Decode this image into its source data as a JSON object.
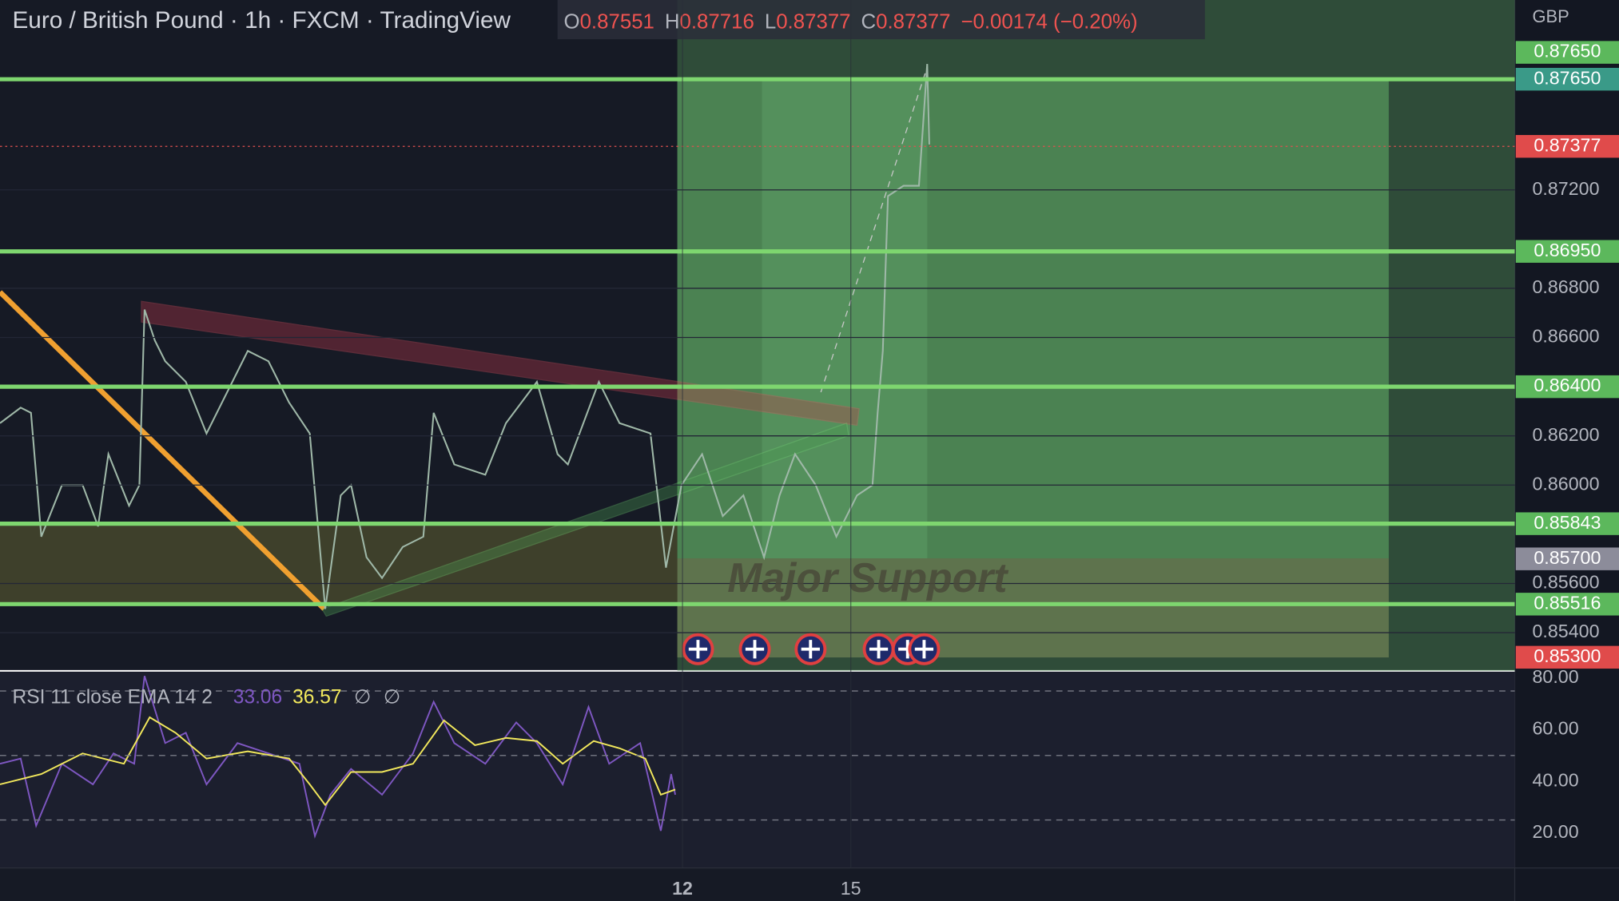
{
  "header": {
    "symbol": "Euro / British Pound · 1h · FXCM · TradingView",
    "ohlc": [
      {
        "label": "O",
        "value": "0.87551"
      },
      {
        "label": "H",
        "value": "0.87716"
      },
      {
        "label": "L",
        "value": "0.87377"
      },
      {
        "label": "C",
        "value": "0.87377"
      }
    ],
    "change": "−0.00174 (−0.20%)"
  },
  "price_axis": {
    "currency": "GBP",
    "ticks": [
      "0.87200",
      "0.86800",
      "0.86600",
      "0.86200",
      "0.86000",
      "0.85600",
      "0.85400"
    ]
  },
  "price_levels": [
    {
      "label": "0.87650",
      "color": "#5cb85c",
      "line": false
    },
    {
      "label": "0.87650",
      "color": "#3a9a88",
      "line": true
    },
    {
      "label": "0.87377",
      "color": "#e04b4b",
      "line": false
    },
    {
      "label": "0.86950",
      "color": "#5cb85c",
      "line": true
    },
    {
      "label": "0.86400",
      "color": "#5cb85c",
      "line": true
    },
    {
      "label": "0.85843",
      "color": "#5cb85c",
      "line": true
    },
    {
      "label": "0.85700",
      "color": "#8c8c9a",
      "line": false
    },
    {
      "label": "0.85516",
      "color": "#5cb85c",
      "line": true
    },
    {
      "label": "0.85300",
      "color": "#e04b4b",
      "line": false
    }
  ],
  "annotation": "Major Support",
  "rsi": {
    "title": "RSI 11 close EMA 14 2",
    "value": "33.06",
    "ema": "36.57",
    "flags": [
      "∅",
      "∅"
    ],
    "ticks": [
      "80.00",
      "60.00",
      "40.00",
      "20.00"
    ]
  },
  "time_axis": [
    "12",
    "15"
  ]
}
